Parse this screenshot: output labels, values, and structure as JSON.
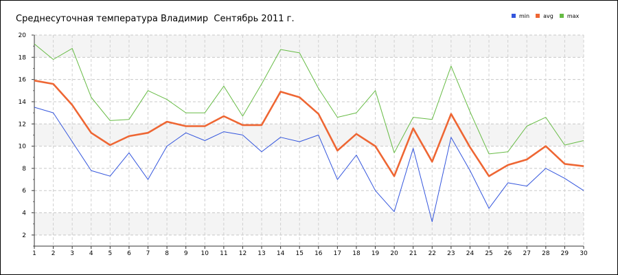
{
  "chart_data": {
    "type": "line",
    "title": "Среднесуточная температура Владимир  Сентябрь 2011 г.",
    "xlabel": "",
    "ylabel": "",
    "x": [
      1,
      2,
      3,
      4,
      5,
      6,
      7,
      8,
      9,
      10,
      11,
      12,
      13,
      14,
      15,
      16,
      17,
      18,
      19,
      20,
      21,
      22,
      23,
      24,
      25,
      26,
      27,
      28,
      29,
      30
    ],
    "xlim": [
      1,
      30
    ],
    "ylim": [
      1,
      20
    ],
    "yticks": [
      2,
      4,
      6,
      8,
      10,
      12,
      14,
      16,
      18,
      20
    ],
    "grid": true,
    "legend_position": "top-right",
    "series": [
      {
        "name": "min",
        "color": "#3355dd",
        "values": [
          13.5,
          13.0,
          10.4,
          7.8,
          7.3,
          9.4,
          7.0,
          10.0,
          11.2,
          10.5,
          11.3,
          11.0,
          9.5,
          10.8,
          10.4,
          11.0,
          7.0,
          9.2,
          6.0,
          4.1,
          9.8,
          3.2,
          10.8,
          7.8,
          4.4,
          6.7,
          6.4,
          8.0,
          7.1,
          6.0
        ]
      },
      {
        "name": "avg",
        "color": "#ee6633",
        "values": [
          15.9,
          15.6,
          13.7,
          11.2,
          10.1,
          10.9,
          11.2,
          12.2,
          11.8,
          11.8,
          12.7,
          11.9,
          11.9,
          14.9,
          14.4,
          12.9,
          9.6,
          11.1,
          10.0,
          7.3,
          11.6,
          8.6,
          12.9,
          9.9,
          7.3,
          8.3,
          8.8,
          10.0,
          8.4,
          8.2
        ]
      },
      {
        "name": "max",
        "color": "#66bb44",
        "values": [
          19.2,
          17.8,
          18.8,
          14.4,
          12.3,
          12.4,
          15.0,
          14.2,
          13.0,
          13.0,
          15.4,
          12.7,
          15.6,
          18.7,
          18.4,
          15.2,
          12.6,
          13.0,
          15.0,
          9.4,
          12.6,
          12.4,
          17.2,
          13.1,
          9.3,
          9.5,
          11.8,
          12.6,
          10.1,
          10.5
        ]
      }
    ]
  }
}
